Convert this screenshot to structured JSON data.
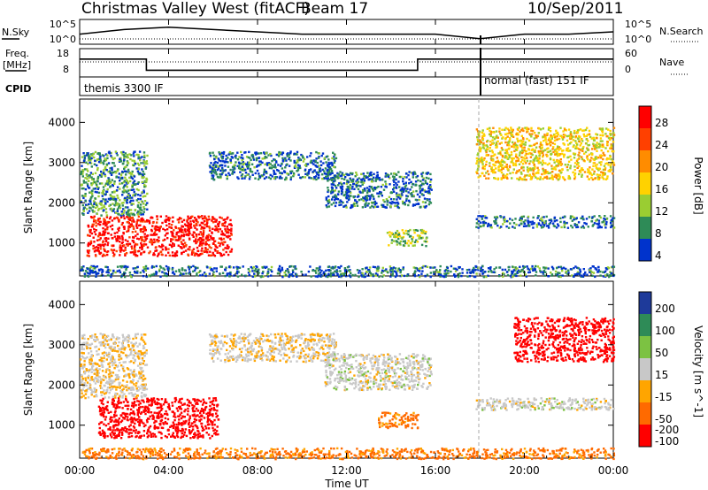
{
  "header": {
    "station": "Christmas Valley West (fitACF)",
    "beam": "Beam 17",
    "date": "10/Sep/2011"
  },
  "top_panel": {
    "left_label": "N.Sky",
    "right_label": "N.Search",
    "left_ticks": [
      "10^5",
      "10^0"
    ],
    "right_ticks": [
      "10^5",
      "10^0"
    ]
  },
  "freq_panel": {
    "left_label_1": "Freq.",
    "left_label_2": "[MHz]",
    "left_ticks": [
      "18",
      "8"
    ],
    "right_ticks": [
      "60",
      "0"
    ],
    "right_label": "Nave"
  },
  "cpid": {
    "label": "CPID",
    "mode_1": "themis 3300 IF",
    "mode_2": "normal (fast) 151 IF"
  },
  "power_panel": {
    "ylabel": "Slant Range [km]",
    "yticks": [
      "4000",
      "3000",
      "2000",
      "1000"
    ],
    "colorbar_label": "Power [dB]",
    "colorbar_ticks": [
      "28",
      "24",
      "20",
      "16",
      "12",
      "8",
      "4"
    ],
    "colorbar_colors": [
      "#ff0000",
      "#ff4000",
      "#ff8c00",
      "#ffd200",
      "#9acd32",
      "#2e8b57",
      "#0033cc"
    ]
  },
  "velocity_panel": {
    "ylabel": "Slant Range [km]",
    "yticks": [
      "4000",
      "3000",
      "2000",
      "1000"
    ],
    "colorbar_label": "Velocity [m s^-1]",
    "colorbar_ticks": [
      "200",
      "100",
      "50",
      "15",
      "-15",
      "-50",
      "-100",
      "-200"
    ],
    "colorbar_colors": [
      "#1e3a9a",
      "#2e8b57",
      "#7cc242",
      "#c8c8c8",
      "#ffa500",
      "#ff6a00",
      "#ff0000"
    ]
  },
  "xaxis": {
    "ticks": [
      "00:00",
      "04:00",
      "08:00",
      "12:00",
      "16:00",
      "20:00",
      "00:00"
    ],
    "label": "Time UT"
  },
  "chart_data": [
    {
      "type": "line",
      "name": "N.Sky",
      "x_unit": "hours UT",
      "x": [
        0,
        2,
        4,
        6,
        8,
        10,
        12,
        14,
        16,
        18,
        20,
        22,
        24
      ],
      "y": [
        2,
        3,
        3.5,
        3,
        2.5,
        2,
        2,
        2,
        2,
        1,
        2,
        2,
        2.5
      ],
      "ylim": [
        0,
        5
      ]
    },
    {
      "type": "line",
      "name": "Freq.",
      "x": [
        0,
        3,
        3,
        15.2,
        15.2,
        18.05,
        18.05,
        24
      ],
      "y": [
        14.5,
        14.5,
        10,
        10,
        14.5,
        14.5,
        14.5,
        14.5
      ],
      "ylim": [
        8,
        18
      ]
    },
    {
      "type": "heatmap",
      "name": "Power",
      "xlim": [
        0,
        24
      ],
      "ylim": [
        180,
        4580
      ],
      "regions": [
        {
          "t": [
            0.3,
            6.8
          ],
          "r": [
            700,
            1700
          ],
          "value_db": 26
        },
        {
          "t": [
            0.0,
            3.0
          ],
          "r": [
            1700,
            3300
          ],
          "value_db": 8
        },
        {
          "t": [
            5.8,
            11.5
          ],
          "r": [
            2600,
            3300
          ],
          "value_db": 6
        },
        {
          "t": [
            11.0,
            15.8
          ],
          "r": [
            1900,
            2800
          ],
          "value_db": 6
        },
        {
          "t": [
            13.8,
            15.6
          ],
          "r": [
            950,
            1350
          ],
          "value_db": 10
        },
        {
          "t": [
            17.8,
            24.0
          ],
          "r": [
            1400,
            1700
          ],
          "value_db": 6
        },
        {
          "t": [
            17.8,
            24.0
          ],
          "r": [
            2600,
            3900
          ],
          "value_db": 14
        },
        {
          "t": [
            0.0,
            24.0
          ],
          "r": [
            180,
            450
          ],
          "value_db": 6
        }
      ]
    },
    {
      "type": "heatmap",
      "name": "Velocity",
      "xlim": [
        0,
        24
      ],
      "ylim": [
        180,
        4580
      ],
      "regions": [
        {
          "t": [
            0.8,
            6.2
          ],
          "r": [
            700,
            1700
          ],
          "value_ms": -220
        },
        {
          "t": [
            0.0,
            3.0
          ],
          "r": [
            1700,
            3300
          ],
          "value_ms": -10
        },
        {
          "t": [
            5.8,
            11.5
          ],
          "r": [
            2600,
            3300
          ],
          "value_ms": -10
        },
        {
          "t": [
            11.0,
            15.8
          ],
          "r": [
            1900,
            2800
          ],
          "value_ms": 0
        },
        {
          "t": [
            13.4,
            15.2
          ],
          "r": [
            950,
            1350
          ],
          "value_ms": -60
        },
        {
          "t": [
            17.8,
            24.0
          ],
          "r": [
            1400,
            1700
          ],
          "value_ms": 0
        },
        {
          "t": [
            19.5,
            24.0
          ],
          "r": [
            2600,
            3700
          ],
          "value_ms": -220
        },
        {
          "t": [
            0.0,
            24.0
          ],
          "r": [
            180,
            450
          ],
          "value_ms": -60
        }
      ]
    }
  ]
}
